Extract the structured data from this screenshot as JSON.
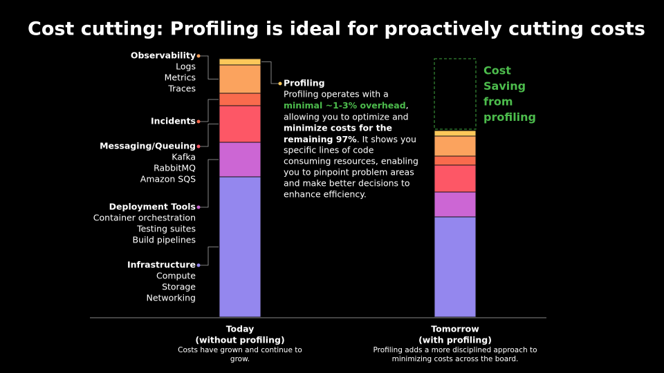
{
  "title": "Cost cutting: Profiling is ideal for proactively cutting costs",
  "chart_data": {
    "type": "stacked-bar",
    "categories": [
      "Today",
      "Tomorrow"
    ],
    "category_subtitles": [
      "(without profiling)",
      "(with profiling)"
    ],
    "category_notes": [
      [
        "Costs have grown and continue to",
        "grow."
      ],
      [
        "Profiling adds a more disciplined approach to",
        "minimizing costs across the board."
      ]
    ],
    "series": [
      {
        "name": "Infrastructure",
        "color": "#9487ee",
        "items": [
          "Compute",
          "Storage",
          "Networking"
        ],
        "values": [
          203,
          145
        ]
      },
      {
        "name": "Deployment Tools",
        "color": "#cc66d4",
        "items": [
          "Container orchestration",
          "Testing suites",
          "Build pipelines"
        ],
        "values": [
          50,
          36
        ]
      },
      {
        "name": "Messaging/Queuing",
        "color": "#fd5766",
        "items": [
          "Kafka",
          "RabbitMQ",
          "Amazon SQS"
        ],
        "values": [
          53,
          39
        ]
      },
      {
        "name": "Incidents",
        "color": "#f96b4d",
        "items": [],
        "values": [
          18,
          13
        ]
      },
      {
        "name": "Observability",
        "color": "#fba35e",
        "items": [
          "Logs",
          "Metrics",
          "Traces"
        ],
        "values": [
          41,
          29
        ]
      },
      {
        "name": "Profiling",
        "color": "#fcc85a",
        "items": [],
        "values": [
          9,
          8
        ]
      }
    ],
    "saving_label": [
      "Cost",
      "Saving",
      "from",
      "profiling"
    ],
    "note_lines": [
      [
        "Profiling operates with a"
      ],
      [
        "minimal ~1-3% overhead"
      ],
      [
        "allowing you to optimize and"
      ],
      [
        "minimize costs for the"
      ],
      [
        "remaining 97%",
        ". It shows you"
      ],
      [
        "specific lines of code"
      ],
      [
        "consuming resources, enabling"
      ],
      [
        "you to pinpoint problem areas"
      ],
      [
        "and make better decisions to"
      ],
      [
        "enhance efficiency."
      ]
    ]
  }
}
